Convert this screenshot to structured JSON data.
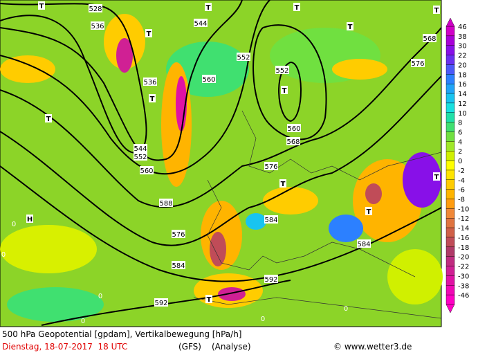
{
  "map": {
    "labels": [
      "528",
      "536",
      "544",
      "552",
      "552",
      "536",
      "560",
      "544",
      "552",
      "560",
      "560",
      "568",
      "576",
      "568",
      "576",
      "588",
      "576",
      "584",
      "584",
      "584",
      "592",
      "592",
      "T",
      "T",
      "T",
      "T",
      "T",
      "T",
      "T",
      "T",
      "T",
      "T",
      "T",
      "T",
      "T",
      "H",
      "0",
      "0",
      "0",
      "0",
      "0",
      "0"
    ],
    "colorbar": [
      {
        "label": "46",
        "color": "#d000c8"
      },
      {
        "label": "38",
        "color": "#a800d8"
      },
      {
        "label": "30",
        "color": "#8810e8"
      },
      {
        "label": "22",
        "color": "#6a30f0"
      },
      {
        "label": "20",
        "color": "#4c58f8"
      },
      {
        "label": "18",
        "color": "#2c80ff"
      },
      {
        "label": "16",
        "color": "#20a4f8"
      },
      {
        "label": "14",
        "color": "#18c4f0"
      },
      {
        "label": "12",
        "color": "#18e0e0"
      },
      {
        "label": "10",
        "color": "#20e0a8"
      },
      {
        "label": "8",
        "color": "#40e070"
      },
      {
        "label": "6",
        "color": "#70e040"
      },
      {
        "label": "4",
        "color": "#a0e828"
      },
      {
        "label": "2",
        "color": "#d0f000"
      },
      {
        "label": "0",
        "color": "#ffff00"
      },
      {
        "label": "-2",
        "color": "#ffe400"
      },
      {
        "label": "-4",
        "color": "#ffcc00"
      },
      {
        "label": "-6",
        "color": "#ffb400"
      },
      {
        "label": "-8",
        "color": "#ff9c10"
      },
      {
        "label": "-10",
        "color": "#f08838"
      },
      {
        "label": "-12",
        "color": "#e07440"
      },
      {
        "label": "-14",
        "color": "#d06048"
      },
      {
        "label": "-16",
        "color": "#c04c58"
      },
      {
        "label": "-18",
        "color": "#b03a68"
      },
      {
        "label": "-20",
        "color": "#c02c80"
      },
      {
        "label": "-22",
        "color": "#d02094"
      },
      {
        "label": "-30",
        "color": "#e012a4"
      },
      {
        "label": "-38",
        "color": "#f008b4"
      },
      {
        "label": "-46",
        "color": "#ff00c4"
      }
    ],
    "footer": {
      "title": "500 hPa Geopotential [gpdam], Vertikalbewegung [hPa/h]",
      "date": "Dienstag, 18-07-2017  18 UTC",
      "model": "(GFS)",
      "run": "(Analyse)",
      "credit": "© www.wetter3.de"
    }
  }
}
